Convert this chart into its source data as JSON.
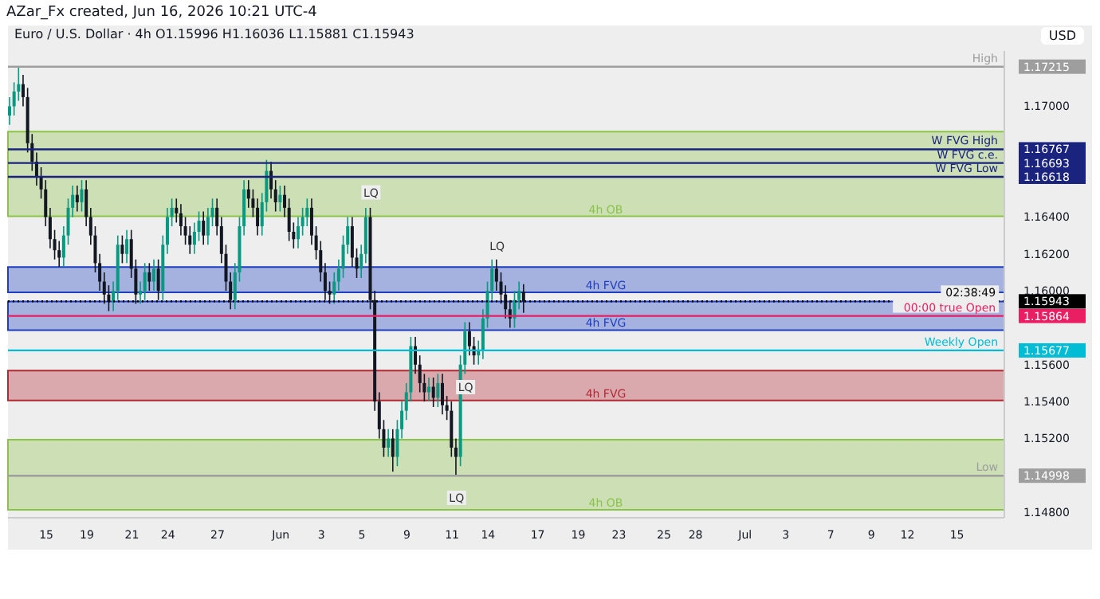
{
  "chart_data": {
    "type": "candlestick",
    "title": "Euro / U.S. Dollar · 4h  O1.15996 H1.16036 L1.15881 C1.15943",
    "subtitle": "AZar_Fx created, Jun 16, 2026 10:21 UTC-4",
    "ylabel": "USD",
    "categories": [
      null,
      null,
      null,
      null,
      null,
      null,
      null,
      null,
      "15",
      null,
      null,
      null,
      null,
      null,
      null,
      null,
      null,
      "19",
      null,
      null,
      null,
      null,
      null,
      null,
      null,
      null,
      null,
      "21",
      null,
      null,
      null,
      null,
      null,
      null,
      null,
      "24",
      null,
      null,
      null,
      null,
      null,
      null,
      null,
      null,
      null,
      null,
      "27",
      null,
      null,
      null,
      null,
      null,
      null,
      null,
      null,
      null,
      null,
      null,
      null,
      null,
      "Jun",
      null,
      null,
      null,
      null,
      null,
      null,
      null,
      null,
      "3",
      null,
      null,
      null,
      null,
      null,
      null,
      null,
      null,
      "5",
      null,
      null,
      null,
      null,
      null,
      null,
      null,
      null,
      null,
      "9",
      null,
      null,
      null,
      null,
      null,
      null,
      null,
      null,
      null,
      "11",
      null,
      null,
      null,
      null,
      null,
      null,
      null,
      "14",
      null,
      null,
      null,
      null,
      null,
      null,
      null,
      null,
      null,
      null,
      "17",
      null,
      null,
      null,
      null,
      null,
      null,
      null,
      null,
      "19",
      null,
      null,
      null,
      null,
      null,
      null,
      null,
      null,
      "23",
      null,
      null,
      null,
      null,
      null,
      null,
      null,
      null,
      null,
      "25",
      null,
      null,
      null,
      null,
      null,
      null,
      "28",
      null,
      null,
      null,
      null,
      null,
      null,
      null,
      null,
      null,
      null,
      "Jul",
      null,
      null,
      null,
      null,
      null,
      null,
      null,
      null,
      "3",
      null,
      null,
      null,
      null,
      null,
      null,
      null,
      null,
      null,
      "7",
      null,
      null,
      null,
      null,
      null,
      null,
      null,
      null,
      "9",
      null,
      null,
      null,
      null,
      null,
      null,
      null,
      "12",
      null,
      null,
      null,
      null,
      null,
      null,
      null,
      null,
      null,
      null,
      "15",
      null,
      null,
      null,
      null,
      null,
      null,
      null,
      null,
      null,
      null
    ],
    "ohlc": [
      [
        1.1695,
        1.1705,
        1.169,
        1.17
      ],
      [
        1.17,
        1.1713,
        1.1695,
        1.1708
      ],
      [
        1.1708,
        1.17215,
        1.1703,
        1.1712
      ],
      [
        1.1712,
        1.1717,
        1.17,
        1.1705
      ],
      [
        1.1705,
        1.171,
        1.1675,
        1.168
      ],
      [
        1.168,
        1.1685,
        1.1665,
        1.167
      ],
      [
        1.167,
        1.1675,
        1.1657,
        1.1662
      ],
      [
        1.1662,
        1.1667,
        1.165,
        1.1655
      ],
      [
        1.1655,
        1.166,
        1.1635,
        1.164
      ],
      [
        1.164,
        1.1645,
        1.1623,
        1.1628
      ],
      [
        1.1628,
        1.1633,
        1.1617,
        1.1622
      ],
      [
        1.1622,
        1.1627,
        1.1613,
        1.1618
      ],
      [
        1.1618,
        1.1635,
        1.1613,
        1.163
      ],
      [
        1.163,
        1.165,
        1.1625,
        1.1645
      ],
      [
        1.1645,
        1.1657,
        1.164,
        1.1652
      ],
      [
        1.1652,
        1.1657,
        1.1643,
        1.1648
      ],
      [
        1.1648,
        1.166,
        1.1643,
        1.1655
      ],
      [
        1.1655,
        1.166,
        1.1635,
        1.164
      ],
      [
        1.164,
        1.1645,
        1.1625,
        1.163
      ],
      [
        1.163,
        1.1635,
        1.161,
        1.1615
      ],
      [
        1.1615,
        1.162,
        1.16,
        1.1605
      ],
      [
        1.1605,
        1.161,
        1.1593,
        1.1598
      ],
      [
        1.1598,
        1.1603,
        1.1589,
        1.1594
      ],
      [
        1.1594,
        1.1605,
        1.1589,
        1.16
      ],
      [
        1.16,
        1.163,
        1.1595,
        1.1625
      ],
      [
        1.1625,
        1.163,
        1.1615,
        1.162
      ],
      [
        1.162,
        1.1633,
        1.1615,
        1.1628
      ],
      [
        1.1628,
        1.1633,
        1.1607,
        1.1612
      ],
      [
        1.1612,
        1.1617,
        1.1593,
        1.1598
      ],
      [
        1.1598,
        1.1605,
        1.1593,
        1.16
      ],
      [
        1.16,
        1.1615,
        1.1595,
        1.161
      ],
      [
        1.161,
        1.1615,
        1.16,
        1.1605
      ],
      [
        1.1605,
        1.1617,
        1.16,
        1.1612
      ],
      [
        1.1612,
        1.1617,
        1.1595,
        1.16
      ],
      [
        1.16,
        1.163,
        1.1595,
        1.1625
      ],
      [
        1.1625,
        1.1645,
        1.162,
        1.164
      ],
      [
        1.164,
        1.165,
        1.1635,
        1.1645
      ],
      [
        1.1645,
        1.165,
        1.1637,
        1.1642
      ],
      [
        1.1642,
        1.1647,
        1.163,
        1.1635
      ],
      [
        1.1635,
        1.164,
        1.1625,
        1.163
      ],
      [
        1.163,
        1.1635,
        1.162,
        1.1625
      ],
      [
        1.1625,
        1.1637,
        1.162,
        1.1632
      ],
      [
        1.1632,
        1.1643,
        1.1627,
        1.1638
      ],
      [
        1.1638,
        1.1643,
        1.1625,
        1.163
      ],
      [
        1.163,
        1.1645,
        1.1625,
        1.164
      ],
      [
        1.164,
        1.165,
        1.1635,
        1.1645
      ],
      [
        1.1645,
        1.165,
        1.163,
        1.1635
      ],
      [
        1.1635,
        1.164,
        1.1615,
        1.162
      ],
      [
        1.162,
        1.1625,
        1.16,
        1.1605
      ],
      [
        1.1605,
        1.161,
        1.159,
        1.1595
      ],
      [
        1.1595,
        1.1615,
        1.159,
        1.161
      ],
      [
        1.161,
        1.164,
        1.1605,
        1.1635
      ],
      [
        1.1635,
        1.166,
        1.163,
        1.1655
      ],
      [
        1.1655,
        1.166,
        1.1645,
        1.165
      ],
      [
        1.165,
        1.1655,
        1.164,
        1.1645
      ],
      [
        1.1645,
        1.165,
        1.163,
        1.1635
      ],
      [
        1.1635,
        1.1653,
        1.163,
        1.1648
      ],
      [
        1.1648,
        1.1671,
        1.1643,
        1.1665
      ],
      [
        1.1665,
        1.167,
        1.165,
        1.1655
      ],
      [
        1.1655,
        1.166,
        1.1643,
        1.1648
      ],
      [
        1.1648,
        1.1657,
        1.1643,
        1.1652
      ],
      [
        1.1652,
        1.1657,
        1.164,
        1.1645
      ],
      [
        1.1645,
        1.165,
        1.1627,
        1.1632
      ],
      [
        1.1632,
        1.1637,
        1.1623,
        1.1628
      ],
      [
        1.1628,
        1.164,
        1.1623,
        1.1635
      ],
      [
        1.1635,
        1.1645,
        1.163,
        1.164
      ],
      [
        1.164,
        1.165,
        1.1635,
        1.1645
      ],
      [
        1.1645,
        1.165,
        1.1625,
        1.163
      ],
      [
        1.163,
        1.1635,
        1.1617,
        1.1622
      ],
      [
        1.1622,
        1.1627,
        1.1605,
        1.161
      ],
      [
        1.161,
        1.1615,
        1.1595,
        1.16
      ],
      [
        1.16,
        1.1605,
        1.1593,
        1.1598
      ],
      [
        1.1598,
        1.161,
        1.1593,
        1.1605
      ],
      [
        1.1605,
        1.1617,
        1.16,
        1.1612
      ],
      [
        1.1612,
        1.163,
        1.1607,
        1.1625
      ],
      [
        1.1625,
        1.164,
        1.162,
        1.1635
      ],
      [
        1.1635,
        1.164,
        1.1613,
        1.1618
      ],
      [
        1.1618,
        1.1623,
        1.1607,
        1.1612
      ],
      [
        1.1612,
        1.1625,
        1.1607,
        1.162
      ],
      [
        1.162,
        1.1645,
        1.1615,
        1.164
      ],
      [
        1.164,
        1.1645,
        1.159,
        1.1595
      ],
      [
        1.1595,
        1.16,
        1.1535,
        1.154
      ],
      [
        1.154,
        1.1545,
        1.152,
        1.1525
      ],
      [
        1.1525,
        1.153,
        1.151,
        1.1515
      ],
      [
        1.1515,
        1.1525,
        1.151,
        1.152
      ],
      [
        1.152,
        1.1525,
        1.1502,
        1.151
      ],
      [
        1.151,
        1.153,
        1.1505,
        1.1525
      ],
      [
        1.1525,
        1.154,
        1.152,
        1.1535
      ],
      [
        1.1535,
        1.155,
        1.153,
        1.1545
      ],
      [
        1.1545,
        1.1575,
        1.154,
        1.157
      ],
      [
        1.157,
        1.1575,
        1.1555,
        1.156
      ],
      [
        1.156,
        1.1565,
        1.1545,
        1.155
      ],
      [
        1.155,
        1.1555,
        1.154,
        1.1545
      ],
      [
        1.1545,
        1.1553,
        1.154,
        1.1548
      ],
      [
        1.1548,
        1.1553,
        1.1537,
        1.1542
      ],
      [
        1.1542,
        1.1555,
        1.1537,
        1.155
      ],
      [
        1.155,
        1.1555,
        1.1533,
        1.1538
      ],
      [
        1.1538,
        1.1543,
        1.153,
        1.1535
      ],
      [
        1.1535,
        1.154,
        1.151,
        1.1515
      ],
      [
        1.1515,
        1.152,
        1.14998,
        1.151
      ],
      [
        1.151,
        1.1565,
        1.1505,
        1.156
      ],
      [
        1.156,
        1.1583,
        1.1555,
        1.1578
      ],
      [
        1.1578,
        1.1583,
        1.1565,
        1.157
      ],
      [
        1.157,
        1.1575,
        1.156,
        1.1565
      ],
      [
        1.1565,
        1.1573,
        1.156,
        1.1568
      ],
      [
        1.1568,
        1.159,
        1.1563,
        1.1585
      ],
      [
        1.1585,
        1.1605,
        1.158,
        1.16
      ],
      [
        1.16,
        1.1617,
        1.1595,
        1.1612
      ],
      [
        1.1612,
        1.1617,
        1.16,
        1.1605
      ],
      [
        1.1605,
        1.161,
        1.1593,
        1.1598
      ],
      [
        1.1598,
        1.1603,
        1.1585,
        1.159
      ],
      [
        1.159,
        1.1595,
        1.158,
        1.1585
      ],
      [
        1.1585,
        1.16,
        1.158,
        1.1595
      ],
      [
        1.1595,
        1.1605,
        1.159,
        1.16
      ],
      [
        1.15996,
        1.16036,
        1.15881,
        1.15943
      ],
      null,
      null,
      null,
      null,
      null,
      null,
      null,
      null,
      null,
      null,
      null,
      null,
      null,
      null,
      null,
      null,
      null,
      null,
      null,
      null,
      null,
      null,
      null,
      null,
      null,
      null,
      null,
      null,
      null,
      null,
      null,
      null,
      null,
      null,
      null,
      null,
      null,
      null,
      null,
      null,
      null,
      null,
      null,
      null,
      null,
      null,
      null,
      null,
      null,
      null,
      null,
      null,
      null,
      null,
      null,
      null,
      null,
      null,
      null,
      null,
      null,
      null,
      null,
      null,
      null,
      null,
      null,
      null,
      null,
      null,
      null,
      null,
      null,
      null,
      null,
      null,
      null,
      null,
      null,
      null,
      null,
      null,
      null,
      null,
      null,
      null,
      null,
      null,
      null,
      null,
      null,
      null,
      null,
      null,
      null,
      null,
      null,
      null,
      null,
      null,
      null,
      null,
      null,
      null,
      null,
      null
    ],
    "ylim": [
      1.1477,
      1.173
    ],
    "yticks": [
      {
        "value": 1.148,
        "label": "1.14800"
      },
      {
        "value": 1.14998,
        "label": "1.14998"
      },
      {
        "value": 1.152,
        "label": "1.15200"
      },
      {
        "value": 1.154,
        "label": "1.15400"
      },
      {
        "value": 1.156,
        "label": "1.15600"
      },
      {
        "value": 1.15677,
        "label": "1.15677"
      },
      {
        "value": 1.15864,
        "label": "1.15864"
      },
      {
        "value": 1.15943,
        "label": "1.15943"
      },
      {
        "value": 1.16,
        "label": "1.16000"
      },
      {
        "value": 1.162,
        "label": "1.16200"
      },
      {
        "value": 1.164,
        "label": "1.16400"
      },
      {
        "value": 1.16618,
        "label": "1.16618"
      },
      {
        "value": 1.16693,
        "label": "1.16693"
      },
      {
        "value": 1.16767,
        "label": "1.16767"
      },
      {
        "value": 1.17,
        "label": "1.17000"
      },
      {
        "value": 1.17215,
        "label": "1.17215"
      }
    ],
    "bands": [
      {
        "axis": "y",
        "from": 1.16404,
        "to": 1.16863,
        "label": "4h OB",
        "color": "#8bc34a"
      },
      {
        "axis": "y",
        "from": 1.15992,
        "to": 1.16129,
        "label": "4h FVG",
        "color": "#1e3fbf"
      },
      {
        "axis": "y",
        "from": 1.15787,
        "to": 1.15942,
        "label": "4h FVG",
        "color": "#1e3fbf"
      },
      {
        "axis": "y",
        "from": 1.15406,
        "to": 1.15568,
        "label": "4h FVG",
        "color": "#b22833"
      },
      {
        "axis": "y",
        "from": 1.14813,
        "to": 1.15193,
        "label": "4h OB",
        "color": "#8bc34a"
      }
    ],
    "ref_lines": [
      {
        "axis": "y",
        "value": 1.17215,
        "label": "High",
        "color": "#9e9e9e",
        "line_style": "solid"
      },
      {
        "axis": "y",
        "value": 1.16767,
        "label": "W FVG High",
        "color": "#1a237e",
        "line_style": "solid"
      },
      {
        "axis": "y",
        "value": 1.16693,
        "label": "W FVG c.e.",
        "color": "#1a237e",
        "line_style": "solid"
      },
      {
        "axis": "y",
        "value": 1.16618,
        "label": "W FVG Low",
        "color": "#1a237e",
        "line_style": "solid"
      },
      {
        "axis": "y",
        "value": 1.15943,
        "color": "#000000",
        "line_style": "dotted"
      },
      {
        "axis": "y",
        "value": 1.15864,
        "color": "#e91e63",
        "line_style": "solid"
      },
      {
        "axis": "y",
        "value": 1.15677,
        "label": "Weekly Open",
        "color": "#00bcd4",
        "line_style": "solid"
      },
      {
        "axis": "y",
        "value": 1.14998,
        "label": "Low",
        "color": "#9e9e9e",
        "line_style": "solid"
      }
    ],
    "annotations": [
      {
        "text": "LQ",
        "y": 1.1646
      },
      {
        "text": "LQ",
        "y": 1.1617
      },
      {
        "text": "LQ",
        "y": 1.1556
      },
      {
        "text": "LQ",
        "y": 1.1496
      },
      {
        "text": "02:38:49",
        "y": 1.15943
      },
      {
        "text": "00:00 true Open",
        "y": 1.15864
      }
    ],
    "grid": false,
    "legend": false
  }
}
